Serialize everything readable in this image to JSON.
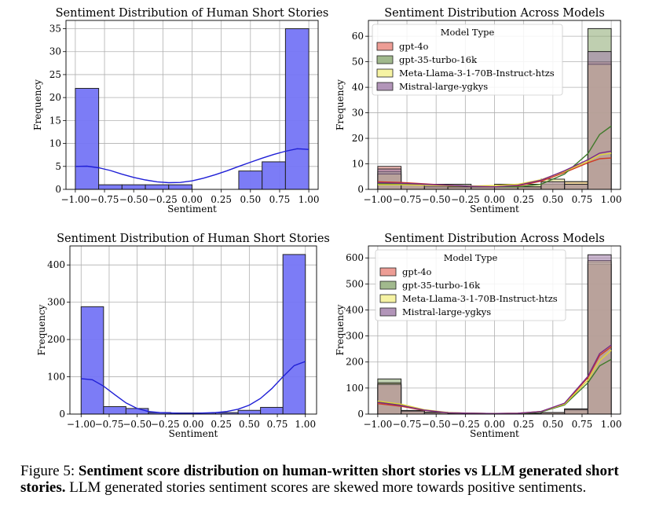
{
  "figure": {
    "caption_label": "Figure 5:",
    "caption_bold": "Sentiment score distribution on human-written short stories vs LLM generated short stories.",
    "caption_rest": "LLM generated stories sentiment scores are skewed more towards positive sentiments."
  },
  "colors": {
    "human": "#7575f5",
    "human_edge": "#333333",
    "kde": "#1f1fd6",
    "grid": "#b0b0b0",
    "gpt4o": "#e8847a",
    "gpt35": "#8aa870",
    "llama": "#f4f08c",
    "mistral": "#9f7aa8"
  },
  "chart_data": [
    {
      "id": "tl",
      "type": "histogram",
      "title": "Sentiment Distribution of Human Short Stories",
      "xlabel": "Sentiment",
      "ylabel": "Frequency",
      "xlim": [
        -1.08,
        1.08
      ],
      "ylim": [
        0,
        36.8
      ],
      "xticks": [
        -1.0,
        -0.75,
        -0.5,
        -0.25,
        0.0,
        0.25,
        0.5,
        0.75,
        1.0
      ],
      "xtick_labels": [
        "−1.00",
        "−0.75",
        "−0.50",
        "−0.25",
        "0.00",
        "0.25",
        "0.50",
        "0.75",
        "1.00"
      ],
      "yticks": [
        0,
        5,
        10,
        15,
        20,
        25,
        30,
        35
      ],
      "ytick_labels": [
        "0",
        "5",
        "10",
        "15",
        "20",
        "25",
        "30",
        "35"
      ],
      "bins": [
        -1.0,
        -0.8,
        -0.6,
        -0.4,
        -0.2,
        0.0,
        0.2,
        0.4,
        0.6,
        0.8,
        1.0
      ],
      "series": [
        {
          "name": "Human",
          "color": "#7575f5",
          "alpha": 0.95,
          "values": [
            22,
            1,
            1,
            1,
            1,
            0,
            0,
            4,
            6,
            35
          ],
          "kde": [
            [
              -1.0,
              5.0
            ],
            [
              -0.9,
              5.05
            ],
            [
              -0.8,
              4.7
            ],
            [
              -0.7,
              4.1
            ],
            [
              -0.6,
              3.3
            ],
            [
              -0.5,
              2.6
            ],
            [
              -0.4,
              2.05
            ],
            [
              -0.3,
              1.65
            ],
            [
              -0.2,
              1.45
            ],
            [
              -0.1,
              1.5
            ],
            [
              0.0,
              1.85
            ],
            [
              0.1,
              2.45
            ],
            [
              0.2,
              3.2
            ],
            [
              0.3,
              4.05
            ],
            [
              0.4,
              5.0
            ],
            [
              0.5,
              5.9
            ],
            [
              0.6,
              6.8
            ],
            [
              0.7,
              7.6
            ],
            [
              0.8,
              8.3
            ],
            [
              0.9,
              8.85
            ],
            [
              1.0,
              8.7
            ]
          ]
        }
      ]
    },
    {
      "id": "tr",
      "type": "histogram",
      "title": "Sentiment Distribution Across Models",
      "xlabel": "Sentiment",
      "ylabel": "Frequency",
      "xlim": [
        -1.08,
        1.08
      ],
      "ylim": [
        0,
        66.2
      ],
      "xticks": [
        -1.0,
        -0.75,
        -0.5,
        -0.25,
        0.0,
        0.25,
        0.5,
        0.75,
        1.0
      ],
      "xtick_labels": [
        "−1.00",
        "−0.75",
        "−0.50",
        "−0.25",
        "0.00",
        "0.25",
        "0.50",
        "0.75",
        "1.00"
      ],
      "yticks": [
        0,
        10,
        20,
        30,
        40,
        50,
        60
      ],
      "ytick_labels": [
        "0",
        "10",
        "20",
        "30",
        "40",
        "50",
        "60"
      ],
      "bins": [
        -1.0,
        -0.8,
        -0.6,
        -0.4,
        -0.2,
        0.0,
        0.2,
        0.4,
        0.6,
        0.8,
        1.0
      ],
      "legend_title": "Model Type",
      "series": [
        {
          "name": "gpt-4o",
          "color": "#e8847a",
          "alpha": 0.55,
          "values": [
            9,
            2,
            1,
            1,
            1,
            1,
            1,
            2,
            3,
            50
          ],
          "line": "#cf3b22",
          "kde": [
            [
              -1.0,
              3.0
            ],
            [
              -0.8,
              2.7
            ],
            [
              -0.6,
              2.2
            ],
            [
              -0.4,
              1.6
            ],
            [
              -0.2,
              1.2
            ],
            [
              0.0,
              1.0
            ],
            [
              0.2,
              1.4
            ],
            [
              0.4,
              3.2
            ],
            [
              0.6,
              6.6
            ],
            [
              0.8,
              10.4
            ],
            [
              0.9,
              12.0
            ],
            [
              1.0,
              12.3
            ]
          ]
        },
        {
          "name": "gpt-35-turbo-16k",
          "color": "#8aa870",
          "alpha": 0.55,
          "values": [
            7,
            2,
            2,
            2,
            1,
            1,
            1,
            2,
            2,
            63
          ],
          "line": "#3f7a2a",
          "kde": [
            [
              -1.0,
              2.2
            ],
            [
              -0.8,
              2.1
            ],
            [
              -0.6,
              1.8
            ],
            [
              -0.4,
              1.5
            ],
            [
              -0.2,
              1.2
            ],
            [
              0.0,
              1.0
            ],
            [
              0.2,
              1.0
            ],
            [
              0.4,
              2.0
            ],
            [
              0.6,
              6.0
            ],
            [
              0.8,
              14.0
            ],
            [
              0.9,
              21.5
            ],
            [
              1.0,
              24.8
            ]
          ]
        },
        {
          "name": "Meta-Llama-3-1-70B-Instruct-htzs",
          "color": "#f4f08c",
          "alpha": 0.55,
          "values": [
            6,
            2,
            1,
            1,
            1,
            2,
            2,
            4,
            3,
            49
          ],
          "line": "#e0d43a",
          "kde": [
            [
              -1.0,
              1.8
            ],
            [
              -0.8,
              1.8
            ],
            [
              -0.6,
              1.6
            ],
            [
              -0.4,
              1.4
            ],
            [
              -0.2,
              1.3
            ],
            [
              0.0,
              1.5
            ],
            [
              0.2,
              2.0
            ],
            [
              0.4,
              3.8
            ],
            [
              0.6,
              7.0
            ],
            [
              0.8,
              11.0
            ],
            [
              0.9,
              13.5
            ],
            [
              1.0,
              14.2
            ]
          ]
        },
        {
          "name": "Mistral-large-ygkys",
          "color": "#9f7aa8",
          "alpha": 0.55,
          "values": [
            8,
            2,
            2,
            1,
            1,
            1,
            1,
            3,
            2,
            54
          ],
          "line": "#7b2a86",
          "kde": [
            [
              -1.0,
              2.6
            ],
            [
              -0.8,
              2.4
            ],
            [
              -0.6,
              2.0
            ],
            [
              -0.4,
              1.6
            ],
            [
              -0.2,
              1.2
            ],
            [
              0.0,
              1.0
            ],
            [
              0.2,
              1.6
            ],
            [
              0.4,
              3.6
            ],
            [
              0.6,
              7.3
            ],
            [
              0.8,
              11.6
            ],
            [
              0.9,
              14.2
            ],
            [
              1.0,
              15.0
            ]
          ]
        }
      ]
    },
    {
      "id": "bl",
      "type": "histogram",
      "title": "Sentiment Distribution of Human Short Stories",
      "xlabel": "Sentiment",
      "ylabel": "Frequency",
      "xlim": [
        -1.1,
        1.1
      ],
      "ylim": [
        0,
        451
      ],
      "xticks": [
        -1.0,
        -0.75,
        -0.5,
        -0.25,
        0.0,
        0.25,
        0.5,
        0.75,
        1.0
      ],
      "xtick_labels": [
        "−1.00",
        "−0.75",
        "−0.50",
        "−0.25",
        "0.00",
        "0.25",
        "0.50",
        "0.75",
        "1.00"
      ],
      "yticks": [
        0,
        100,
        200,
        300,
        400
      ],
      "ytick_labels": [
        "0",
        "100",
        "200",
        "300",
        "400"
      ],
      "bins": [
        -1.0,
        -0.8,
        -0.6,
        -0.4,
        -0.2,
        0.0,
        0.2,
        0.4,
        0.6,
        0.8,
        1.0
      ],
      "series": [
        {
          "name": "Human",
          "color": "#7575f5",
          "alpha": 0.95,
          "values": [
            288,
            20,
            15,
            4,
            3,
            3,
            4,
            10,
            18,
            428
          ],
          "kde": [
            [
              -1.0,
              95
            ],
            [
              -0.9,
              92
            ],
            [
              -0.8,
              75
            ],
            [
              -0.7,
              52
            ],
            [
              -0.6,
              30
            ],
            [
              -0.5,
              15
            ],
            [
              -0.4,
              7
            ],
            [
              -0.3,
              4
            ],
            [
              -0.2,
              3
            ],
            [
              -0.1,
              2
            ],
            [
              0.0,
              2
            ],
            [
              0.1,
              3
            ],
            [
              0.2,
              4
            ],
            [
              0.3,
              7
            ],
            [
              0.4,
              13
            ],
            [
              0.5,
              24
            ],
            [
              0.6,
              42
            ],
            [
              0.7,
              68
            ],
            [
              0.8,
              100
            ],
            [
              0.9,
              130
            ],
            [
              1.0,
              141
            ]
          ]
        }
      ]
    },
    {
      "id": "br",
      "type": "histogram",
      "title": "Sentiment Distribution Across Models",
      "xlabel": "Sentiment",
      "ylabel": "Frequency",
      "xlim": [
        -1.08,
        1.08
      ],
      "ylim": [
        0,
        646
      ],
      "xticks": [
        -1.0,
        -0.75,
        -0.5,
        -0.25,
        0.0,
        0.25,
        0.5,
        0.75,
        1.0
      ],
      "xtick_labels": [
        "−1.00",
        "−0.75",
        "−0.50",
        "−0.25",
        "0.00",
        "0.25",
        "0.50",
        "0.75",
        "1.00"
      ],
      "yticks": [
        0,
        100,
        200,
        300,
        400,
        500,
        600
      ],
      "ytick_labels": [
        "0",
        "100",
        "200",
        "300",
        "400",
        "500",
        "600"
      ],
      "bins": [
        -1.0,
        -0.8,
        -0.6,
        -0.4,
        -0.2,
        0.0,
        0.2,
        0.4,
        0.6,
        0.8,
        1.0
      ],
      "legend_title": "Model Type",
      "series": [
        {
          "name": "gpt-4o",
          "color": "#e8847a",
          "alpha": 0.55,
          "values": [
            112,
            12,
            6,
            3,
            2,
            2,
            3,
            6,
            18,
            575
          ],
          "line": "#cf3b22",
          "kde": [
            [
              -1.0,
              40
            ],
            [
              -0.8,
              30
            ],
            [
              -0.6,
              14
            ],
            [
              -0.4,
              5
            ],
            [
              -0.2,
              3
            ],
            [
              0.0,
              2
            ],
            [
              0.2,
              3
            ],
            [
              0.4,
              10
            ],
            [
              0.6,
              40
            ],
            [
              0.8,
              140
            ],
            [
              0.9,
              225
            ],
            [
              1.0,
              258
            ]
          ]
        },
        {
          "name": "gpt-35-turbo-16k",
          "color": "#8aa870",
          "alpha": 0.55,
          "values": [
            135,
            10,
            5,
            3,
            2,
            2,
            2,
            5,
            15,
            585
          ],
          "line": "#3f7a2a",
          "kde": [
            [
              -1.0,
              48
            ],
            [
              -0.8,
              35
            ],
            [
              -0.6,
              15
            ],
            [
              -0.4,
              5
            ],
            [
              -0.2,
              3
            ],
            [
              0.0,
              2
            ],
            [
              0.2,
              2
            ],
            [
              0.4,
              8
            ],
            [
              0.6,
              35
            ],
            [
              0.8,
              120
            ],
            [
              0.9,
              185
            ],
            [
              1.0,
              210
            ]
          ]
        },
        {
          "name": "Meta-Llama-3-1-70B-Instruct-htzs",
          "color": "#f4f08c",
          "alpha": 0.55,
          "values": [
            120,
            14,
            7,
            3,
            2,
            2,
            3,
            6,
            20,
            590
          ],
          "line": "#e0d43a",
          "kde": [
            [
              -1.0,
              50
            ],
            [
              -0.8,
              38
            ],
            [
              -0.6,
              17
            ],
            [
              -0.4,
              6
            ],
            [
              -0.2,
              3
            ],
            [
              0.0,
              2
            ],
            [
              0.2,
              3
            ],
            [
              0.4,
              10
            ],
            [
              0.6,
              38
            ],
            [
              0.8,
              130
            ],
            [
              0.9,
              205
            ],
            [
              1.0,
              245
            ]
          ]
        },
        {
          "name": "Mistral-large-ygkys",
          "color": "#9f7aa8",
          "alpha": 0.55,
          "values": [
            115,
            12,
            6,
            3,
            2,
            2,
            3,
            6,
            18,
            612
          ],
          "line": "#7b2a86",
          "kde": [
            [
              -1.0,
              45
            ],
            [
              -0.8,
              33
            ],
            [
              -0.6,
              15
            ],
            [
              -0.4,
              5
            ],
            [
              -0.2,
              3
            ],
            [
              0.0,
              2
            ],
            [
              0.2,
              3
            ],
            [
              0.4,
              10
            ],
            [
              0.6,
              42
            ],
            [
              0.8,
              145
            ],
            [
              0.9,
              232
            ],
            [
              1.0,
              265
            ]
          ]
        }
      ]
    }
  ]
}
